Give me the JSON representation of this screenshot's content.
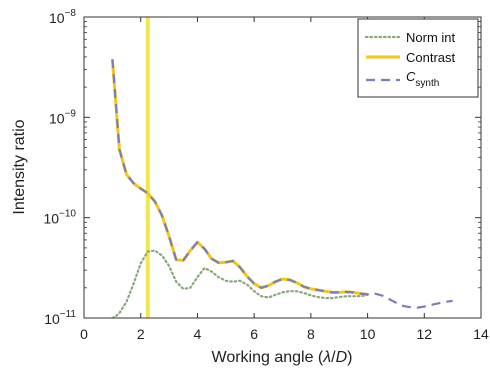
{
  "chart_data": {
    "type": "line",
    "xlabel_parts": [
      "Working angle (",
      "λ",
      "/",
      "D",
      ")"
    ],
    "ylabel": "Intensity ratio",
    "xlim": [
      0,
      14
    ],
    "ylim": [
      1e-11,
      1e-08
    ],
    "yscale": "log",
    "xticks": [
      0,
      2,
      4,
      6,
      8,
      10,
      12,
      14
    ],
    "xtick_labels": [
      "0",
      "2",
      "4",
      "6",
      "8",
      "10",
      "12",
      "14"
    ],
    "yticks": [
      {
        "value": 1e-11,
        "base": "10",
        "exp": "−11"
      },
      {
        "value": 1e-10,
        "base": "10",
        "exp": "−10"
      },
      {
        "value": 1e-09,
        "base": "10",
        "exp": "−9"
      },
      {
        "value": 1e-08,
        "base": "10",
        "exp": "−8"
      }
    ],
    "grid": false,
    "legend_position": "top-right",
    "vertical_line": {
      "x": 2.25,
      "color": "#f0e84a"
    },
    "series": [
      {
        "name": "Norm int",
        "style": "dotted",
        "color": "#8aa77a",
        "x": [
          1.0,
          1.1,
          1.25,
          1.5,
          1.75,
          2.0,
          2.25,
          2.5,
          2.75,
          3.0,
          3.25,
          3.5,
          3.75,
          4.0,
          4.25,
          4.5,
          4.75,
          5.0,
          5.25,
          5.5,
          5.75,
          6.0,
          6.25,
          6.5,
          6.75,
          7.0,
          7.25,
          7.5,
          7.75,
          8.0,
          8.25,
          8.5,
          8.75,
          9.0,
          9.25,
          9.5,
          9.75,
          10.0
        ],
        "y": [
          1e-11,
          1.03e-11,
          1.12e-11,
          1.45e-11,
          2.2e-11,
          3.5e-11,
          4.6e-11,
          4.7e-11,
          4.2e-11,
          3.3e-11,
          2.3e-11,
          1.95e-11,
          2e-11,
          2.55e-11,
          3.15e-11,
          2.9e-11,
          2.55e-11,
          2.35e-11,
          2.3e-11,
          2.35e-11,
          2.15e-11,
          1.85e-11,
          1.65e-11,
          1.6e-11,
          1.7e-11,
          1.8e-11,
          1.85e-11,
          1.85e-11,
          1.78e-11,
          1.68e-11,
          1.62e-11,
          1.58e-11,
          1.58e-11,
          1.62e-11,
          1.65e-11,
          1.65e-11,
          1.65e-11,
          1.7e-11
        ]
      },
      {
        "name": "Contrast",
        "style": "solid",
        "color": "#f5c518",
        "x": [
          1.0,
          1.25,
          1.5,
          1.75,
          2.0,
          2.25,
          2.5,
          2.75,
          3.0,
          3.25,
          3.5,
          3.75,
          4.0,
          4.25,
          4.5,
          4.75,
          5.0,
          5.25,
          5.5,
          5.75,
          6.0,
          6.25,
          6.5,
          6.75,
          7.0,
          7.25,
          7.5,
          7.75,
          8.0,
          8.25,
          8.5,
          8.75,
          9.0,
          9.25,
          9.5,
          9.75,
          10.0
        ],
        "y": [
          3.8e-09,
          4.8e-10,
          2.7e-10,
          2.2e-10,
          1.95e-10,
          1.75e-10,
          1.45e-10,
          1.05e-10,
          6.5e-11,
          3.8e-11,
          3.75e-11,
          4.7e-11,
          5.7e-11,
          4.9e-11,
          3.9e-11,
          3.55e-11,
          3.6e-11,
          3.7e-11,
          3.2e-11,
          2.6e-11,
          2.2e-11,
          2e-11,
          2.1e-11,
          2.3e-11,
          2.45e-11,
          2.4e-11,
          2.25e-11,
          2.05e-11,
          1.95e-11,
          1.9e-11,
          1.85e-11,
          1.8e-11,
          1.8e-11,
          1.82e-11,
          1.8e-11,
          1.75e-11,
          1.72e-11
        ]
      },
      {
        "name": "C",
        "name_sub": "synth",
        "style": "dashed",
        "color": "#7b7fb8",
        "x": [
          1.0,
          1.25,
          1.5,
          1.75,
          2.0,
          2.25,
          2.5,
          2.75,
          3.0,
          3.25,
          3.5,
          3.75,
          4.0,
          4.25,
          4.5,
          4.75,
          5.0,
          5.25,
          5.5,
          5.75,
          6.0,
          6.25,
          6.5,
          6.75,
          7.0,
          7.25,
          7.5,
          7.75,
          8.0,
          8.25,
          8.5,
          8.75,
          9.0,
          9.25,
          9.5,
          9.75,
          10.0,
          10.25,
          10.5,
          10.75,
          11.0,
          11.25,
          11.5,
          11.75,
          12.0,
          12.25,
          12.5,
          12.75,
          13.0
        ],
        "y": [
          3.8e-09,
          4.8e-10,
          2.7e-10,
          2.2e-10,
          1.95e-10,
          1.75e-10,
          1.45e-10,
          1.05e-10,
          6.5e-11,
          3.8e-11,
          3.75e-11,
          4.7e-11,
          5.7e-11,
          4.9e-11,
          3.9e-11,
          3.55e-11,
          3.6e-11,
          3.7e-11,
          3.2e-11,
          2.6e-11,
          2.2e-11,
          2e-11,
          2.1e-11,
          2.3e-11,
          2.45e-11,
          2.4e-11,
          2.25e-11,
          2.05e-11,
          1.95e-11,
          1.9e-11,
          1.85e-11,
          1.8e-11,
          1.8e-11,
          1.82e-11,
          1.8e-11,
          1.75e-11,
          1.72e-11,
          1.75e-11,
          1.68e-11,
          1.55e-11,
          1.42e-11,
          1.32e-11,
          1.28e-11,
          1.27e-11,
          1.3e-11,
          1.35e-11,
          1.4e-11,
          1.45e-11,
          1.48e-11
        ]
      }
    ]
  }
}
